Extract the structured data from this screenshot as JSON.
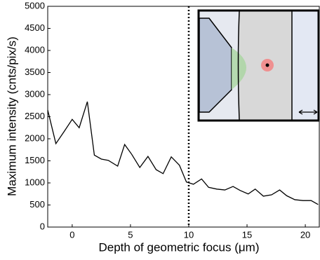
{
  "chart_data": {
    "type": "line",
    "xlabel": "Depth of geometric focus (μm)",
    "ylabel": "Maximum intensity (cnts/pix/s)",
    "x": [
      -2.1,
      -1.4,
      -0.7,
      0,
      0.6,
      1.3,
      1.9,
      2.5,
      3.1,
      3.9,
      4.5,
      5.1,
      5.8,
      6.5,
      7.2,
      7.8,
      8.5,
      9.2,
      9.8,
      10.4,
      11.1,
      11.7,
      12.4,
      13.1,
      13.8,
      14.4,
      15.1,
      15.7,
      16.4,
      17.1,
      17.8,
      18.4,
      19.1,
      19.8,
      20.5,
      21.1
    ],
    "series": [
      {
        "color": "#000000",
        "values": [
          2650,
          1890,
          2160,
          2440,
          2250,
          2840,
          1630,
          1540,
          1510,
          1380,
          1870,
          1650,
          1350,
          1600,
          1300,
          1210,
          1590,
          1400,
          1020,
          970,
          1090,
          900,
          860,
          840,
          920,
          830,
          750,
          860,
          700,
          730,
          840,
          710,
          620,
          600,
          600,
          510
        ]
      }
    ],
    "vline": 10,
    "xlim": [
      -2.1,
      21.2
    ],
    "xticks": [
      0,
      5,
      10,
      15,
      20
    ],
    "ylim": [
      0,
      5000
    ],
    "yticks": [
      0,
      500,
      1000,
      1500,
      2000,
      2500,
      3000,
      3500,
      4000,
      4500,
      5000
    ]
  }
}
